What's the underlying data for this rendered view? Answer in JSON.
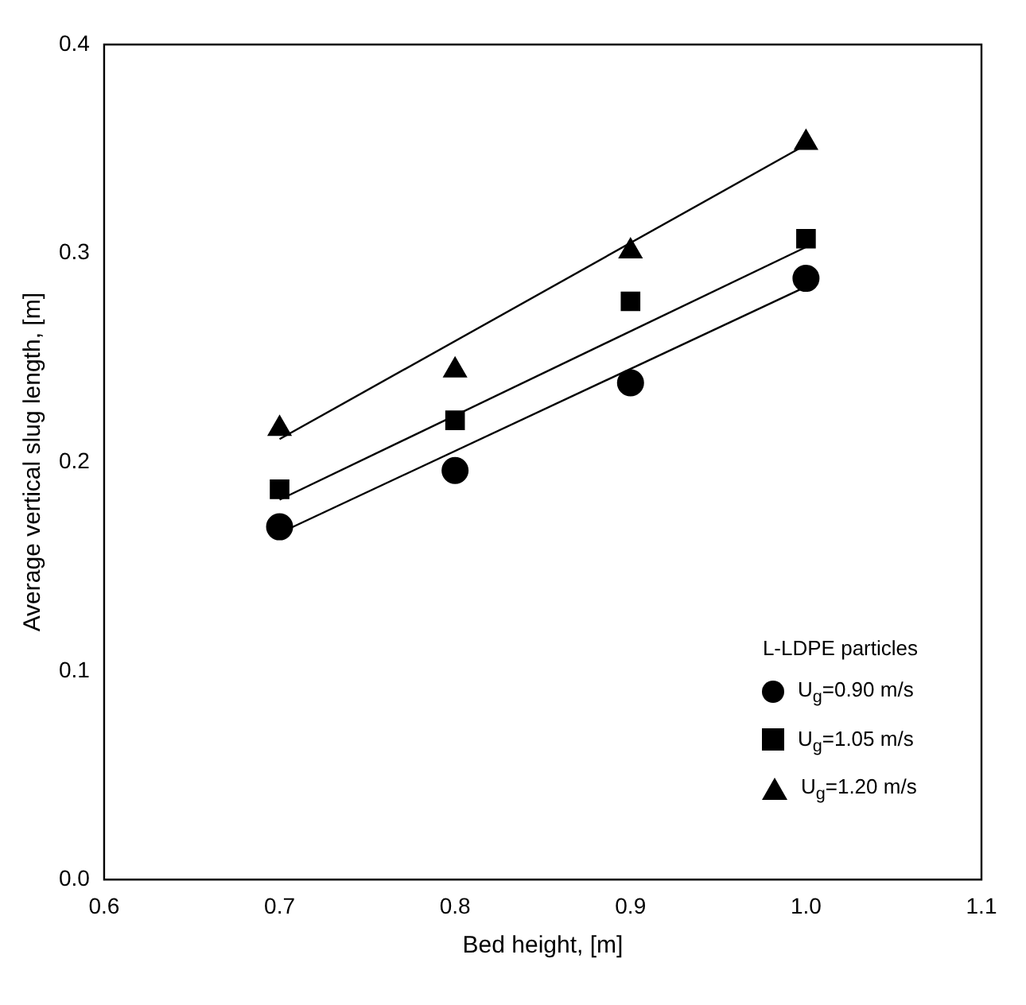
{
  "chart_data": {
    "type": "scatter",
    "xlabel": "Bed height, [m]",
    "ylabel": "Average vertical slug length, [m]",
    "legend_title": "L-LDPE particles",
    "legend": "bottom right",
    "grid": false,
    "xlim": [
      0.6,
      1.1
    ],
    "ylim": [
      0,
      0.4
    ],
    "xticks": [
      0.6,
      0.7,
      0.8,
      0.9,
      {
        "value": 1,
        "label": "1.0"
      },
      1.1
    ],
    "yticks": [
      {
        "value": 0,
        "label": "0.0"
      },
      0.1,
      0.2,
      0.3,
      0.4
    ],
    "series": [
      {
        "name": "U$_{g}$=0.90 m/s",
        "type": "scatter",
        "marker": "circle",
        "color": "#000000",
        "x": [
          0.7,
          0.8,
          0.9,
          1.0
        ],
        "values": [
          0.169,
          0.196,
          0.238,
          0.288
        ]
      },
      {
        "name": "U$_{g}$=1.05 m/s",
        "type": "scatter",
        "marker": "square",
        "color": "#000000",
        "x": [
          0.7,
          0.8,
          0.9,
          1.0
        ],
        "values": [
          0.187,
          0.22,
          0.277,
          0.307
        ]
      },
      {
        "name": "U$_{g}$=1.20 m/s",
        "type": "scatter",
        "marker": "triangle",
        "color": "#000000",
        "x": [
          0.7,
          0.8,
          0.9,
          1.0
        ],
        "values": [
          0.216,
          0.244,
          0.301,
          0.353
        ]
      },
      {
        "type": "line",
        "marker": "none",
        "line_style": "solid",
        "color": "#000000",
        "x": [
          0.7,
          1.0
        ],
        "values": [
          0.166,
          0.284
        ]
      },
      {
        "type": "line",
        "marker": "none",
        "line_style": "solid",
        "color": "#000000",
        "x": [
          0.7,
          1.0
        ],
        "values": [
          0.182,
          0.303
        ]
      },
      {
        "type": "line",
        "marker": "none",
        "line_style": "solid",
        "color": "#000000",
        "x": [
          0.7,
          1.0
        ],
        "values": [
          0.211,
          0.352
        ]
      }
    ]
  }
}
